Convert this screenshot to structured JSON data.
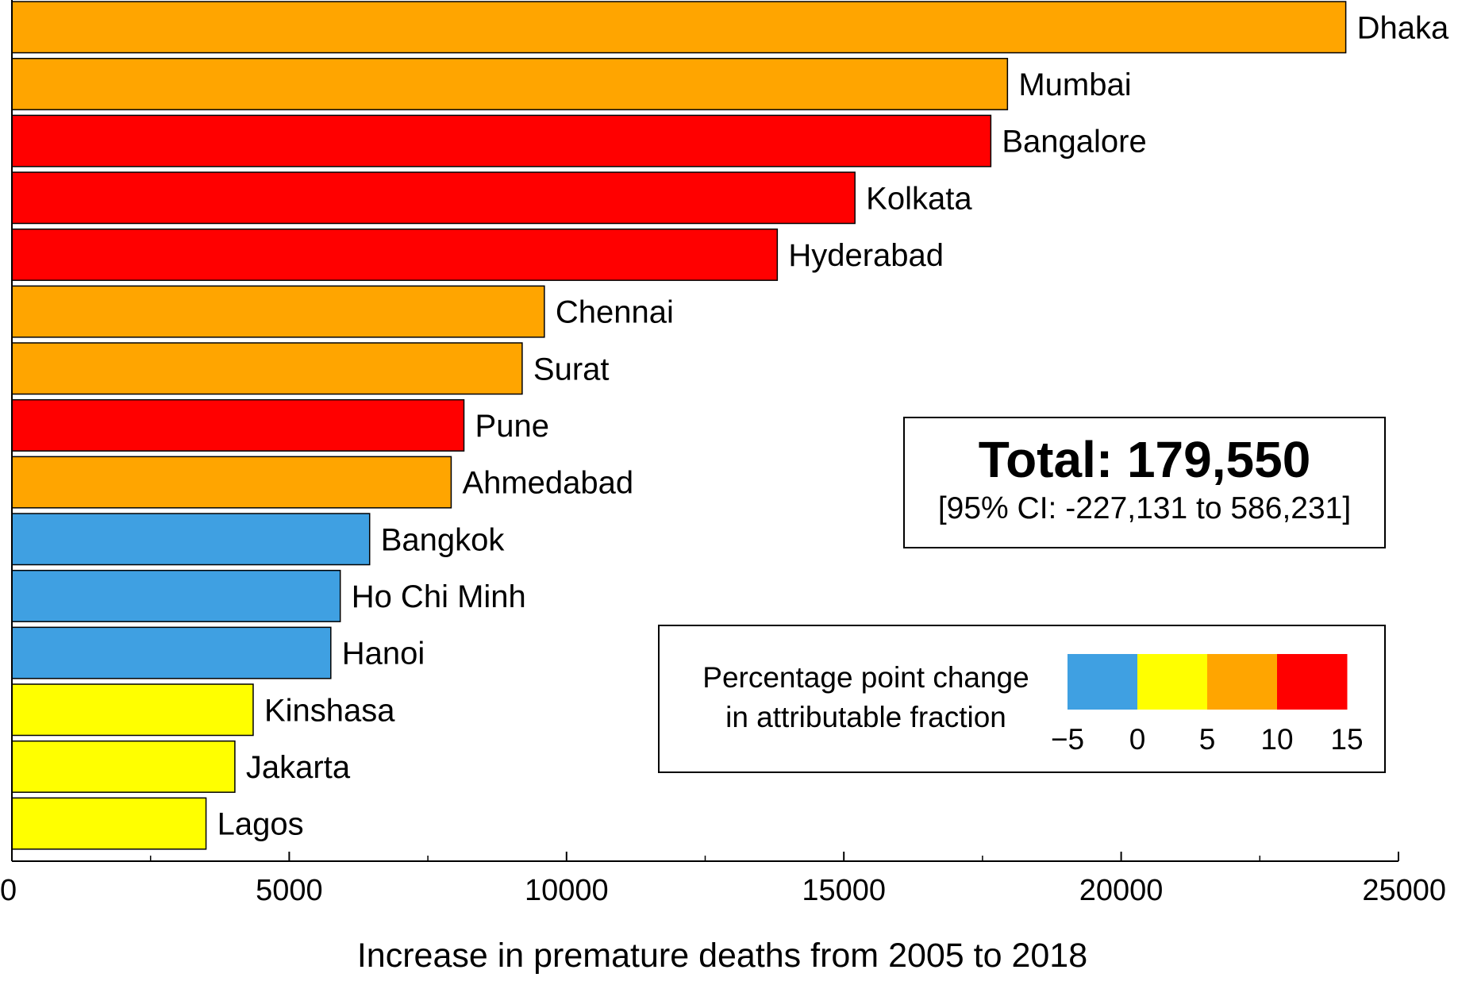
{
  "chart_data": {
    "type": "bar",
    "orientation": "horizontal",
    "categories": [
      "Dhaka",
      "Mumbai",
      "Bangalore",
      "Kolkata",
      "Hyderabad",
      "Chennai",
      "Surat",
      "Pune",
      "Ahmedabad",
      "Bangkok",
      "Ho Chi Minh",
      "Hanoi",
      "Kinshasa",
      "Jakarta",
      "Lagos"
    ],
    "values": [
      24050,
      17950,
      17650,
      15200,
      13800,
      9600,
      9200,
      8150,
      7920,
      6450,
      5920,
      5750,
      4350,
      4020,
      3500
    ],
    "color_values": [
      7.5,
      7.5,
      12.5,
      12.5,
      12.5,
      7.5,
      7.5,
      12.5,
      7.5,
      -2.5,
      -2.5,
      -2.5,
      2.5,
      2.5,
      2.5
    ],
    "xlabel": "Increase in premature deaths from 2005 to 2018",
    "ylabel": "",
    "xlim": [
      0,
      25000
    ],
    "xticks": [
      0,
      5000,
      10000,
      15000,
      20000,
      25000
    ],
    "xtick_labels": [
      "0",
      "5000",
      "10000",
      "15000",
      "20000",
      "25000"
    ],
    "minor_xticks": [
      2500,
      7500,
      12500,
      17500,
      22500
    ],
    "grid": false,
    "annotation": {
      "title": "Total: 179,550",
      "subtitle": "[95% CI: -227,131 to 586,231]"
    },
    "colorbar": {
      "label_line1": "Percentage point change",
      "label_line2": "in attributable fraction",
      "bins": [
        {
          "from": -5,
          "to": 0,
          "color": "#3fa0e2"
        },
        {
          "from": 0,
          "to": 5,
          "color": "#ffff00"
        },
        {
          "from": 5,
          "to": 10,
          "color": "#ffa500"
        },
        {
          "from": 10,
          "to": 15,
          "color": "#ff0000"
        }
      ],
      "ticks": [
        -5,
        0,
        5,
        10,
        15
      ],
      "tick_labels": [
        "−5",
        "0",
        "5",
        "10",
        "15"
      ],
      "legend_position": "lower-right"
    }
  }
}
